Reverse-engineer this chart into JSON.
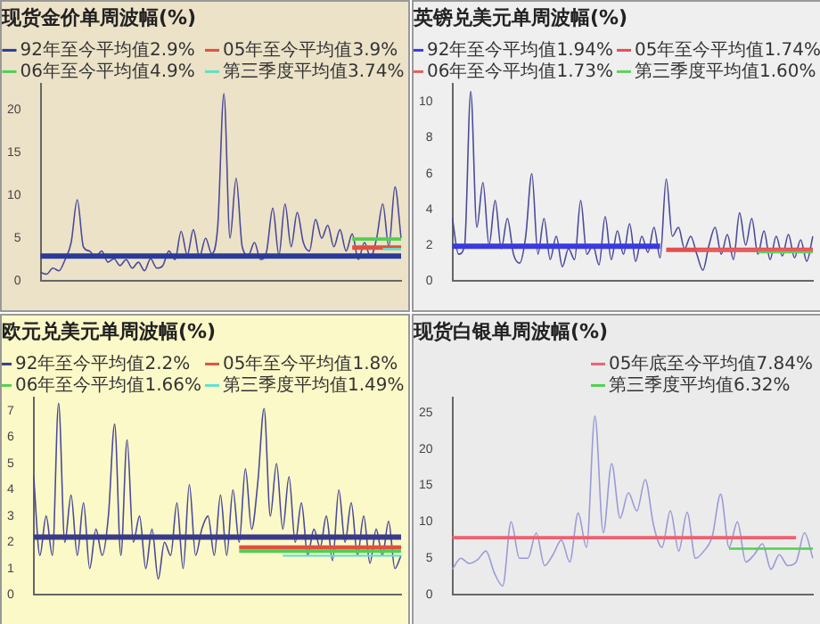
{
  "chart_data": [
    {
      "type": "line",
      "title": "现货金价单周波幅(%)",
      "categories": [
        null,
        null,
        null,
        null,
        null,
        null,
        null,
        null,
        null,
        null,
        null,
        null,
        null,
        null,
        null,
        null,
        null,
        null,
        null,
        null,
        null,
        null,
        null,
        null,
        null,
        null,
        null,
        null,
        null,
        null,
        null,
        null,
        null,
        null,
        null,
        null,
        null,
        null,
        null,
        null,
        null,
        null,
        null,
        null,
        null,
        null,
        null,
        null,
        null,
        null,
        null,
        null,
        null,
        null,
        null,
        null,
        null,
        null,
        null,
        null
      ],
      "ylim": [
        0,
        23
      ],
      "yticks": [
        0,
        5,
        10,
        15,
        20
      ],
      "legend": "top",
      "series": [
        {
          "color": "#4a4a9a",
          "values": [
            1,
            0.8,
            1.5,
            1.2,
            2.5,
            4.5,
            9.5,
            4,
            3.5,
            2.8,
            3.5,
            2.2,
            2.6,
            1.8,
            2.5,
            1.5,
            2.2,
            1.2,
            2.6,
            1.5,
            1.8,
            3.5,
            2.5,
            5.8,
            3,
            6,
            2.8,
            5,
            3.2,
            6.5,
            21.9,
            5,
            12,
            4,
            3,
            4.5,
            2.5,
            3.5,
            8.5,
            3,
            9,
            4,
            8,
            4.5,
            3.5,
            7.2,
            5,
            6.5,
            4,
            6,
            3.5,
            5.5,
            2.5,
            4.5,
            2.8,
            5,
            9,
            4,
            11,
            5
          ]
        },
        {
          "name": "92年至今平均值2.9%",
          "color": "#2a3a9a",
          "values": [
            2.9,
            2.9,
            2.9,
            2.9,
            2.9,
            2.9,
            2.9,
            2.9,
            2.9,
            2.9,
            2.9,
            2.9,
            2.9,
            2.9,
            2.9,
            2.9,
            2.9,
            2.9,
            2.9,
            2.9,
            2.9,
            2.9,
            2.9,
            2.9,
            2.9,
            2.9,
            2.9,
            2.9,
            2.9,
            2.9,
            2.9,
            2.9,
            2.9,
            2.9,
            2.9,
            2.9,
            2.9,
            2.9,
            2.9,
            2.9,
            2.9,
            2.9,
            2.9,
            2.9,
            2.9,
            2.9,
            2.9,
            2.9,
            2.9,
            2.9,
            2.9,
            2.9,
            2.9,
            2.9,
            2.9,
            2.9,
            2.9,
            2.9,
            2.9,
            2.9
          ]
        },
        {
          "name": "05年至今平均值3.9%",
          "color": "#e05040",
          "values": [
            null,
            null,
            null,
            null,
            null,
            null,
            null,
            null,
            null,
            null,
            null,
            null,
            null,
            null,
            null,
            null,
            null,
            null,
            null,
            null,
            null,
            null,
            null,
            null,
            null,
            null,
            null,
            null,
            null,
            null,
            null,
            null,
            null,
            null,
            null,
            null,
            null,
            null,
            null,
            null,
            null,
            null,
            null,
            null,
            null,
            null,
            null,
            null,
            null,
            null,
            null,
            3.9,
            3.9,
            3.9,
            3.9,
            3.9,
            3.9,
            3.9,
            3.9,
            3.9
          ]
        },
        {
          "name": "06年至今平均值4.9%",
          "color": "#50d050",
          "values": [
            null,
            null,
            null,
            null,
            null,
            null,
            null,
            null,
            null,
            null,
            null,
            null,
            null,
            null,
            null,
            null,
            null,
            null,
            null,
            null,
            null,
            null,
            null,
            null,
            null,
            null,
            null,
            null,
            null,
            null,
            null,
            null,
            null,
            null,
            null,
            null,
            null,
            null,
            null,
            null,
            null,
            null,
            null,
            null,
            null,
            null,
            null,
            null,
            null,
            null,
            null,
            4.9,
            4.9,
            4.9,
            4.9,
            4.9,
            4.9,
            4.9,
            4.9,
            4.9
          ]
        },
        {
          "name": "第三季度平均值3.74%",
          "color": "#60e0c0",
          "values": [
            null,
            null,
            null,
            null,
            null,
            null,
            null,
            null,
            null,
            null,
            null,
            null,
            null,
            null,
            null,
            null,
            null,
            null,
            null,
            null,
            null,
            null,
            null,
            null,
            null,
            null,
            null,
            null,
            null,
            null,
            null,
            null,
            null,
            null,
            null,
            null,
            null,
            null,
            null,
            null,
            null,
            null,
            null,
            null,
            null,
            null,
            null,
            null,
            null,
            null,
            null,
            null,
            null,
            null,
            null,
            null,
            3.74,
            3.74,
            3.74,
            3.74
          ]
        }
      ]
    },
    {
      "type": "line",
      "title": "英镑兑美元单周波幅(%)",
      "categories": [
        null,
        null,
        null,
        null,
        null,
        null,
        null,
        null,
        null,
        null,
        null,
        null,
        null,
        null,
        null,
        null,
        null,
        null,
        null,
        null,
        null,
        null,
        null,
        null,
        null,
        null,
        null,
        null,
        null,
        null,
        null,
        null,
        null,
        null,
        null,
        null,
        null,
        null,
        null,
        null,
        null,
        null,
        null,
        null,
        null,
        null,
        null,
        null,
        null,
        null,
        null,
        null,
        null,
        null,
        null,
        null,
        null,
        null,
        null,
        null
      ],
      "ylim": [
        0,
        11
      ],
      "yticks": [
        0,
        2,
        4,
        6,
        8,
        10
      ],
      "legend": "top",
      "series": [
        {
          "color": "#4a4a9a",
          "values": [
            3.5,
            1.5,
            2,
            10.6,
            3,
            5.5,
            2,
            4.5,
            1.8,
            3.5,
            1.5,
            1,
            2.5,
            6,
            1.5,
            3.5,
            1.2,
            2.5,
            0.8,
            1.8,
            1.2,
            4.5,
            1.5,
            2,
            0.9,
            3.6,
            1.2,
            2.8,
            1.5,
            3.2,
            1.1,
            2.5,
            1.6,
            3,
            1.3,
            5.7,
            2.5,
            3,
            1.8,
            2.5,
            1.5,
            0.6,
            2,
            3,
            1.5,
            2.6,
            1.2,
            3.8,
            2,
            3.5,
            1.5,
            2.8,
            1.2,
            2.5,
            1.4,
            2.6,
            1.3,
            2.3,
            1.1,
            2.5
          ]
        },
        {
          "name": "92年至今平均值1.94%",
          "color": "#3a3ae0",
          "values": [
            1.94,
            1.94,
            1.94,
            1.94,
            1.94,
            1.94,
            1.94,
            1.94,
            1.94,
            1.94,
            1.94,
            1.94,
            1.94,
            1.94,
            1.94,
            1.94,
            1.94,
            1.94,
            1.94,
            1.94,
            1.94,
            1.94,
            1.94,
            1.94,
            1.94,
            1.94,
            1.94,
            1.94,
            1.94,
            1.94,
            1.94,
            1.94,
            1.94,
            1.94,
            1.94,
            null,
            null,
            null,
            null,
            null,
            null,
            null,
            null,
            null,
            null,
            null,
            null,
            null,
            null,
            null,
            null,
            null,
            null,
            null,
            null,
            null,
            null,
            null,
            null,
            null
          ]
        },
        {
          "name": "05年至今平均值1.74%",
          "color": "#e05050",
          "values": [
            null,
            null,
            null,
            null,
            null,
            null,
            null,
            null,
            null,
            null,
            null,
            null,
            null,
            null,
            null,
            null,
            null,
            null,
            null,
            null,
            null,
            null,
            null,
            null,
            null,
            null,
            null,
            null,
            null,
            null,
            null,
            null,
            null,
            null,
            null,
            1.74,
            1.74,
            1.74,
            1.74,
            1.74,
            1.74,
            1.74,
            1.74,
            1.74,
            1.74,
            1.74,
            1.74,
            1.74,
            1.74,
            1.74,
            1.74,
            1.74,
            1.74,
            1.74,
            1.74,
            1.74,
            1.74,
            1.74,
            1.74,
            1.74
          ]
        },
        {
          "name": "06年至今平均值1.73%",
          "color": "#e06060",
          "values": [
            null,
            null,
            null,
            null,
            null,
            null,
            null,
            null,
            null,
            null,
            null,
            null,
            null,
            null,
            null,
            null,
            null,
            null,
            null,
            null,
            null,
            null,
            null,
            null,
            null,
            null,
            null,
            null,
            null,
            null,
            null,
            null,
            null,
            null,
            null,
            null,
            null,
            null,
            null,
            null,
            1.73,
            1.73,
            1.73,
            1.73,
            1.73,
            1.73,
            1.73,
            1.73,
            1.73,
            1.73,
            1.73,
            1.73,
            1.73,
            1.73,
            1.73,
            1.73,
            1.73,
            1.73,
            1.73,
            1.73
          ]
        },
        {
          "name": "第三季度平均值1.60%",
          "color": "#60d060",
          "values": [
            null,
            null,
            null,
            null,
            null,
            null,
            null,
            null,
            null,
            null,
            null,
            null,
            null,
            null,
            null,
            null,
            null,
            null,
            null,
            null,
            null,
            null,
            null,
            null,
            null,
            null,
            null,
            null,
            null,
            null,
            null,
            null,
            null,
            null,
            null,
            null,
            null,
            null,
            null,
            null,
            null,
            null,
            null,
            null,
            null,
            null,
            null,
            null,
            null,
            null,
            1.6,
            1.6,
            1.6,
            1.6,
            1.6,
            1.6,
            1.6,
            1.6,
            1.6,
            1.6
          ]
        }
      ]
    },
    {
      "type": "line",
      "title": "欧元兑美元单周波幅(%)",
      "categories": [
        null,
        null,
        null,
        null,
        null,
        null,
        null,
        null,
        null,
        null,
        null,
        null,
        null,
        null,
        null,
        null,
        null,
        null,
        null,
        null,
        null,
        null,
        null,
        null,
        null,
        null,
        null,
        null,
        null,
        null,
        null,
        null,
        null,
        null,
        null,
        null,
        null,
        null,
        null,
        null,
        null,
        null,
        null,
        null,
        null,
        null,
        null,
        null,
        null,
        null,
        null,
        null,
        null,
        null,
        null,
        null,
        null,
        null,
        null,
        null
      ],
      "ylim": [
        0,
        7.5
      ],
      "yticks": [
        0,
        1,
        2,
        3,
        4,
        5,
        6,
        7
      ],
      "legend": "top",
      "series": [
        {
          "color": "#4a4a9a",
          "values": [
            4.5,
            1.5,
            3,
            1.5,
            7.3,
            2,
            3.8,
            1.5,
            3.5,
            1,
            2.5,
            1.5,
            3,
            6.5,
            1.5,
            5.9,
            2,
            3,
            1,
            2.5,
            0.6,
            2,
            1.5,
            3.5,
            1,
            4.2,
            1.5,
            2.5,
            3,
            1.5,
            3.8,
            1.5,
            4,
            2,
            4.8,
            2.5,
            4.3,
            7.1,
            3,
            5,
            2.5,
            4.5,
            2,
            3.5,
            1.5,
            2.5,
            1.8,
            3,
            1.3,
            4,
            2,
            3.5,
            1.5,
            3,
            1.2,
            2.5,
            1.5,
            2.8,
            1,
            1.5
          ]
        },
        {
          "name": "92年至今平均值2.2%",
          "color": "#3a3a8a",
          "values": [
            2.2,
            2.2,
            2.2,
            2.2,
            2.2,
            2.2,
            2.2,
            2.2,
            2.2,
            2.2,
            2.2,
            2.2,
            2.2,
            2.2,
            2.2,
            2.2,
            2.2,
            2.2,
            2.2,
            2.2,
            2.2,
            2.2,
            2.2,
            2.2,
            2.2,
            2.2,
            2.2,
            2.2,
            2.2,
            2.2,
            2.2,
            2.2,
            2.2,
            2.2,
            2.2,
            2.2,
            2.2,
            2.2,
            2.2,
            2.2,
            2.2,
            2.2,
            2.2,
            2.2,
            2.2,
            2.2,
            2.2,
            2.2,
            2.2,
            2.2,
            2.2,
            2.2,
            2.2,
            2.2,
            2.2,
            2.2,
            2.2,
            2.2,
            2.2,
            2.2
          ]
        },
        {
          "name": "05年至今平均值1.8%",
          "color": "#e05040",
          "values": [
            null,
            null,
            null,
            null,
            null,
            null,
            null,
            null,
            null,
            null,
            null,
            null,
            null,
            null,
            null,
            null,
            null,
            null,
            null,
            null,
            null,
            null,
            null,
            null,
            null,
            null,
            null,
            null,
            null,
            null,
            null,
            null,
            null,
            1.8,
            1.8,
            1.8,
            1.8,
            1.8,
            1.8,
            1.8,
            1.8,
            1.8,
            1.8,
            1.8,
            1.8,
            1.8,
            1.8,
            1.8,
            1.8,
            1.8,
            1.8,
            1.8,
            1.8,
            1.8,
            1.8,
            1.8,
            1.8,
            1.8,
            1.8,
            1.8
          ]
        },
        {
          "name": "06年至今平均值1.66%",
          "color": "#50d050",
          "values": [
            null,
            null,
            null,
            null,
            null,
            null,
            null,
            null,
            null,
            null,
            null,
            null,
            null,
            null,
            null,
            null,
            null,
            null,
            null,
            null,
            null,
            null,
            null,
            null,
            null,
            null,
            null,
            null,
            null,
            null,
            null,
            null,
            null,
            1.66,
            1.66,
            1.66,
            1.66,
            1.66,
            1.66,
            1.66,
            1.66,
            1.66,
            1.66,
            1.66,
            1.66,
            1.66,
            1.66,
            1.66,
            1.66,
            1.66,
            1.66,
            1.66,
            1.66,
            1.66,
            1.66,
            1.66,
            1.66,
            1.66,
            1.66,
            1.66
          ]
        },
        {
          "name": "第三季度平均值1.49%",
          "color": "#60e0d0",
          "values": [
            null,
            null,
            null,
            null,
            null,
            null,
            null,
            null,
            null,
            null,
            null,
            null,
            null,
            null,
            null,
            null,
            null,
            null,
            null,
            null,
            null,
            null,
            null,
            null,
            null,
            null,
            null,
            null,
            null,
            null,
            null,
            null,
            null,
            null,
            null,
            null,
            null,
            null,
            null,
            null,
            1.49,
            1.49,
            1.49,
            1.49,
            1.49,
            1.49,
            1.49,
            1.49,
            1.49,
            1.49,
            1.49,
            1.49,
            1.49,
            1.49,
            1.49,
            1.49,
            1.49,
            1.49,
            1.49,
            1.49
          ]
        }
      ]
    },
    {
      "type": "line",
      "title": "现货白银单周波幅(%)",
      "categories": [
        null,
        null,
        null,
        null,
        null,
        null,
        null,
        null,
        null,
        null,
        null,
        null,
        null,
        null,
        null,
        null,
        null,
        null,
        null,
        null,
        null,
        null,
        null,
        null,
        null,
        null,
        null,
        null,
        null,
        null,
        null,
        null,
        null,
        null,
        null,
        null,
        null,
        null,
        null,
        null,
        null,
        null,
        null,
        null
      ],
      "ylim": [
        0,
        27
      ],
      "yticks": [
        0,
        5,
        10,
        15,
        20,
        25
      ],
      "legend": "top right",
      "series": [
        {
          "color": "#9a9ad8",
          "values": [
            3.5,
            5,
            4.3,
            4.8,
            6,
            3,
            1.2,
            10,
            5,
            5,
            8.5,
            4,
            5.5,
            7.5,
            4.5,
            11.2,
            6.5,
            24.5,
            8.5,
            18,
            10.5,
            14,
            11.5,
            15.8,
            9.5,
            6.5,
            11.5,
            6,
            11.3,
            5,
            6,
            8,
            13.8,
            6.5,
            10,
            4.5,
            5.5,
            7,
            3.5,
            5.5,
            4,
            4.5,
            8.5,
            5
          ]
        },
        {
          "name": "05年底至今平均值7.84%",
          "color": "#f06070",
          "values": [
            7.84,
            7.84,
            7.84,
            7.84,
            7.84,
            7.84,
            7.84,
            7.84,
            7.84,
            7.84,
            7.84,
            7.84,
            7.84,
            7.84,
            7.84,
            7.84,
            7.84,
            7.84,
            7.84,
            7.84,
            7.84,
            7.84,
            7.84,
            7.84,
            7.84,
            7.84,
            7.84,
            7.84,
            7.84,
            7.84,
            7.84,
            7.84,
            7.84,
            7.84,
            7.84,
            7.84,
            7.84,
            7.84,
            7.84,
            7.84,
            7.84,
            7.84,
            null,
            null
          ]
        },
        {
          "name": "第三季度平均值6.32%",
          "color": "#50d050",
          "values": [
            null,
            null,
            null,
            null,
            null,
            null,
            null,
            null,
            null,
            null,
            null,
            null,
            null,
            null,
            null,
            null,
            null,
            null,
            null,
            null,
            null,
            null,
            null,
            null,
            null,
            null,
            null,
            null,
            null,
            null,
            null,
            null,
            null,
            6.32,
            6.32,
            6.32,
            6.32,
            6.32,
            6.32,
            6.32,
            6.32,
            6.32,
            6.32,
            6.32
          ]
        }
      ]
    }
  ]
}
